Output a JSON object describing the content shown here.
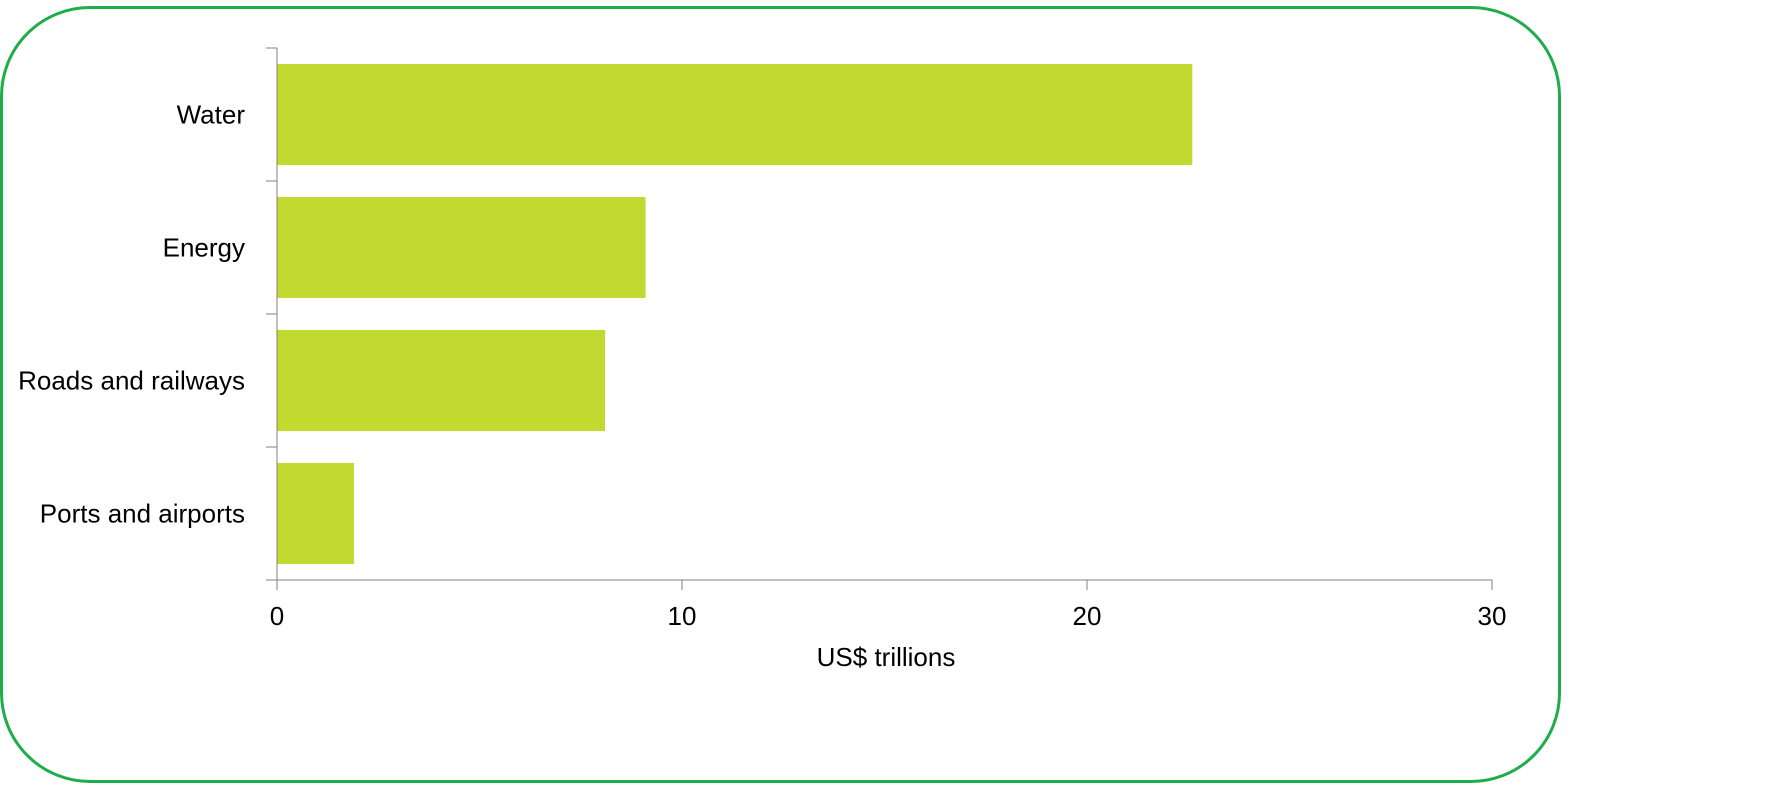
{
  "chart_data": {
    "type": "bar",
    "orientation": "horizontal",
    "categories": [
      "Water",
      "Energy",
      "Roads and railways",
      "Ports and airports"
    ],
    "values": [
      22.6,
      9.1,
      8.1,
      1.9
    ],
    "xlabel": "US$ trillions",
    "ylabel": "",
    "xlim": [
      0,
      30
    ],
    "xticks": [
      "0",
      "10",
      "20",
      "30"
    ],
    "grid": false,
    "legend": "none",
    "bar_color": "#c2d92f",
    "axis_color": "#808080",
    "frame_color": "#1fad4b"
  }
}
